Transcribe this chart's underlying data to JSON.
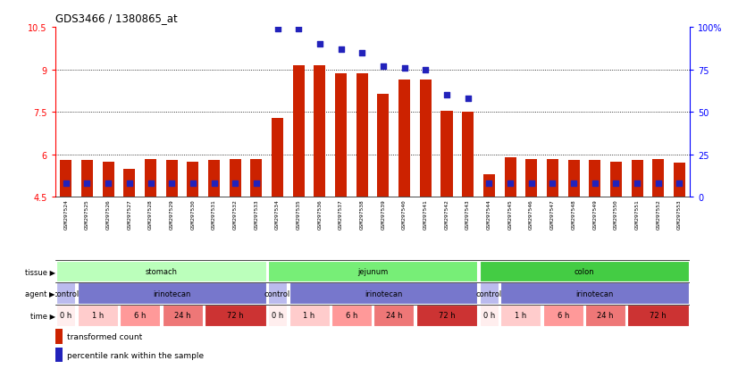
{
  "title": "GDS3466 / 1380865_at",
  "samples": [
    "GSM297524",
    "GSM297525",
    "GSM297526",
    "GSM297527",
    "GSM297528",
    "GSM297529",
    "GSM297530",
    "GSM297531",
    "GSM297532",
    "GSM297533",
    "GSM297534",
    "GSM297535",
    "GSM297536",
    "GSM297537",
    "GSM297538",
    "GSM297539",
    "GSM297540",
    "GSM297541",
    "GSM297542",
    "GSM297543",
    "GSM297544",
    "GSM297545",
    "GSM297546",
    "GSM297547",
    "GSM297548",
    "GSM297549",
    "GSM297550",
    "GSM297551",
    "GSM297552",
    "GSM297553"
  ],
  "bar_heights": [
    5.8,
    5.8,
    5.75,
    5.5,
    5.85,
    5.8,
    5.75,
    5.8,
    5.85,
    5.85,
    7.3,
    9.15,
    9.15,
    8.85,
    8.85,
    8.15,
    8.65,
    8.65,
    7.55,
    7.5,
    5.3,
    5.9,
    5.85,
    5.85,
    5.8,
    5.8,
    5.75,
    5.8,
    5.85,
    5.7
  ],
  "pct_values": [
    8,
    8,
    8,
    8,
    8,
    8,
    8,
    8,
    8,
    8,
    99,
    99,
    90,
    87,
    85,
    77,
    76,
    75,
    60,
    58,
    8,
    8,
    8,
    8,
    8,
    8,
    8,
    8,
    8,
    8
  ],
  "ylim_left": [
    4.5,
    10.5
  ],
  "ylim_right": [
    0,
    100
  ],
  "yticks_left": [
    4.5,
    6.0,
    7.5,
    9.0,
    10.5
  ],
  "ytick_labels_left": [
    "4.5",
    "6",
    "7.5",
    "9",
    "10.5"
  ],
  "yticks_right": [
    0,
    25,
    50,
    75,
    100
  ],
  "ytick_labels_right": [
    "0",
    "25",
    "50",
    "75",
    "100%"
  ],
  "gridlines": [
    6.0,
    7.5,
    9.0
  ],
  "bar_color": "#cc2200",
  "dot_color": "#2222bb",
  "tissue_groups": [
    {
      "label": "stomach",
      "start": 0,
      "end": 9,
      "color": "#bbffbb"
    },
    {
      "label": "jejunum",
      "start": 10,
      "end": 19,
      "color": "#77ee77"
    },
    {
      "label": "colon",
      "start": 20,
      "end": 29,
      "color": "#44cc44"
    }
  ],
  "agent_groups": [
    {
      "label": "control",
      "start": 0,
      "end": 0,
      "color": "#bbbbee"
    },
    {
      "label": "irinotecan",
      "start": 1,
      "end": 9,
      "color": "#7777cc"
    },
    {
      "label": "control",
      "start": 10,
      "end": 10,
      "color": "#bbbbee"
    },
    {
      "label": "irinotecan",
      "start": 11,
      "end": 19,
      "color": "#7777cc"
    },
    {
      "label": "control",
      "start": 20,
      "end": 20,
      "color": "#bbbbee"
    },
    {
      "label": "irinotecan",
      "start": 21,
      "end": 29,
      "color": "#7777cc"
    }
  ],
  "time_groups": [
    {
      "label": "0 h",
      "start": 0,
      "end": 0,
      "color": "#ffeeee"
    },
    {
      "label": "1 h",
      "start": 1,
      "end": 2,
      "color": "#ffcccc"
    },
    {
      "label": "6 h",
      "start": 3,
      "end": 4,
      "color": "#ff9999"
    },
    {
      "label": "24 h",
      "start": 5,
      "end": 6,
      "color": "#ee7777"
    },
    {
      "label": "72 h",
      "start": 7,
      "end": 9,
      "color": "#cc3333"
    },
    {
      "label": "0 h",
      "start": 10,
      "end": 10,
      "color": "#ffeeee"
    },
    {
      "label": "1 h",
      "start": 11,
      "end": 12,
      "color": "#ffcccc"
    },
    {
      "label": "6 h",
      "start": 13,
      "end": 14,
      "color": "#ff9999"
    },
    {
      "label": "24 h",
      "start": 15,
      "end": 16,
      "color": "#ee7777"
    },
    {
      "label": "72 h",
      "start": 17,
      "end": 19,
      "color": "#cc3333"
    },
    {
      "label": "0 h",
      "start": 20,
      "end": 20,
      "color": "#ffeeee"
    },
    {
      "label": "1 h",
      "start": 21,
      "end": 22,
      "color": "#ffcccc"
    },
    {
      "label": "6 h",
      "start": 23,
      "end": 24,
      "color": "#ff9999"
    },
    {
      "label": "24 h",
      "start": 25,
      "end": 26,
      "color": "#ee7777"
    },
    {
      "label": "72 h",
      "start": 27,
      "end": 29,
      "color": "#cc3333"
    }
  ],
  "row_labels": [
    "tissue",
    "agent",
    "time"
  ],
  "legend_items": [
    {
      "label": "transformed count",
      "color": "#cc2200"
    },
    {
      "label": "percentile rank within the sample",
      "color": "#2222bb"
    }
  ]
}
